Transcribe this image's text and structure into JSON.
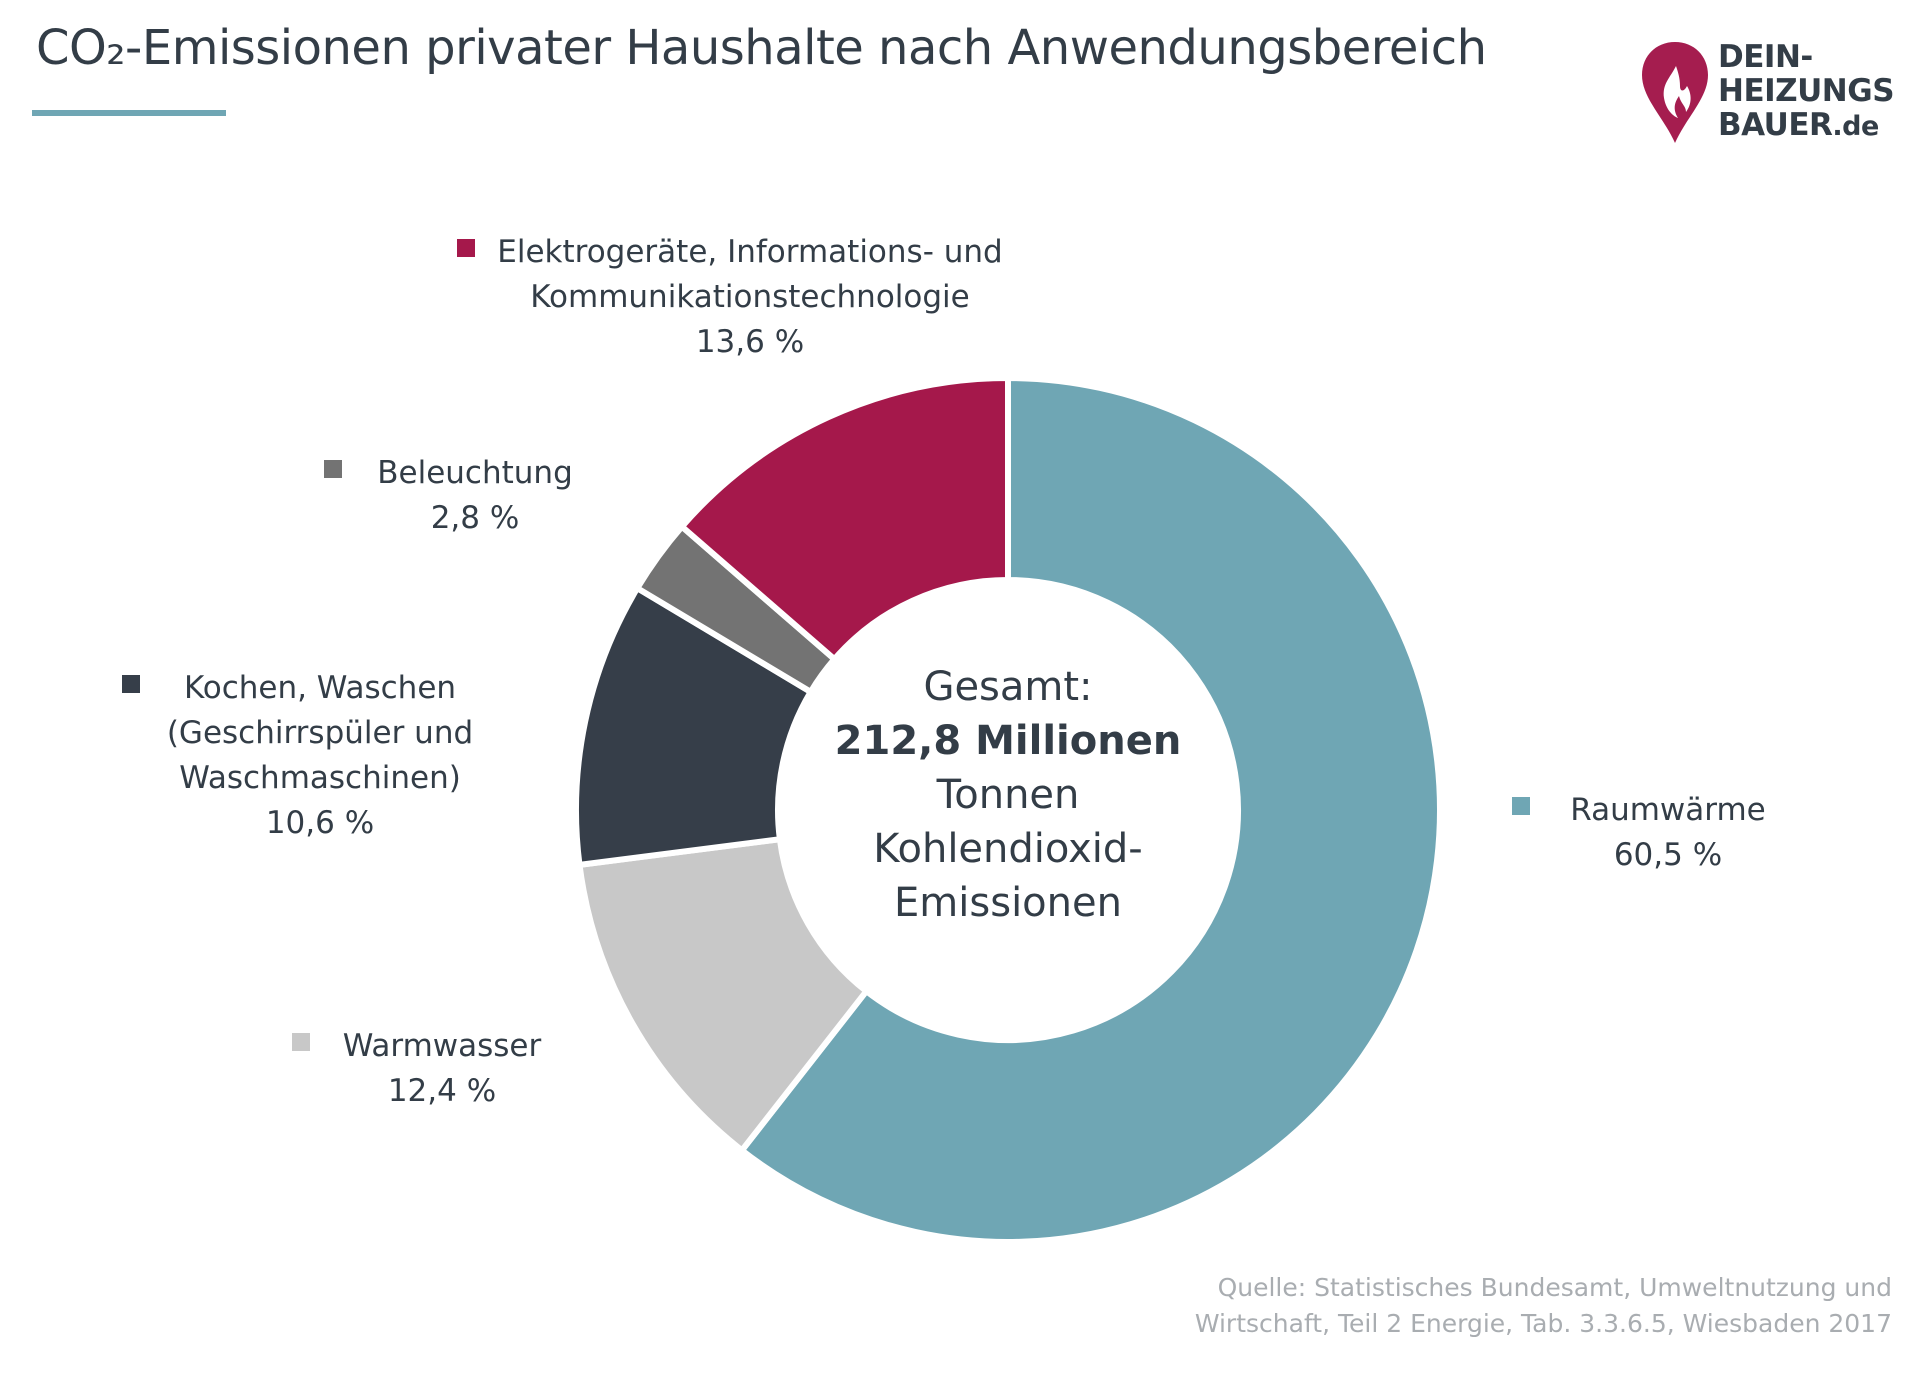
{
  "header": {
    "title": "CO₂-Emissionen privater Haushalte nach Anwendungsbereich"
  },
  "logo": {
    "line1": "DEIN-",
    "line2": "HEIZUNGS",
    "line3": "BAUER",
    "suffix": ".de",
    "brand_color": "#a51d4f",
    "icon": "flame-pin-icon"
  },
  "chart_data": {
    "type": "pie",
    "style": "donut",
    "title": "CO₂-Emissionen privater Haushalte nach Anwendungsbereich",
    "center": {
      "line1": "Gesamt:",
      "bold": "212,8 Millionen",
      "rest": "Tonnen\nKohlendioxid-\nEmissionen"
    },
    "slices": [
      {
        "name": "Raumwärme",
        "value": 60.5,
        "label": "60,5 %",
        "color": "#6fa6b4"
      },
      {
        "name": "Warmwasser",
        "value": 12.4,
        "label": "12,4 %",
        "color": "#c8c8c8"
      },
      {
        "name": "Kochen, Waschen\n(Geschirrspüler und\nWaschmaschinen)",
        "value": 10.6,
        "label": "10,6 %",
        "color": "#363e49"
      },
      {
        "name": "Beleuchtung",
        "value": 2.8,
        "label": "2,8 %",
        "color": "#737373"
      },
      {
        "name": "Elektrogeräte, Informations- und\nKommunikationstechnologie",
        "value": 13.6,
        "label": "13,6 %",
        "color": "#a5184b"
      }
    ],
    "legend": "labels around chart"
  },
  "source": {
    "text": "Quelle: Statistisches Bundesamt, Umweltnutzung und\nWirtschaft, Teil 2 Energie, Tab. 3.3.6.5, Wiesbaden 2017"
  }
}
